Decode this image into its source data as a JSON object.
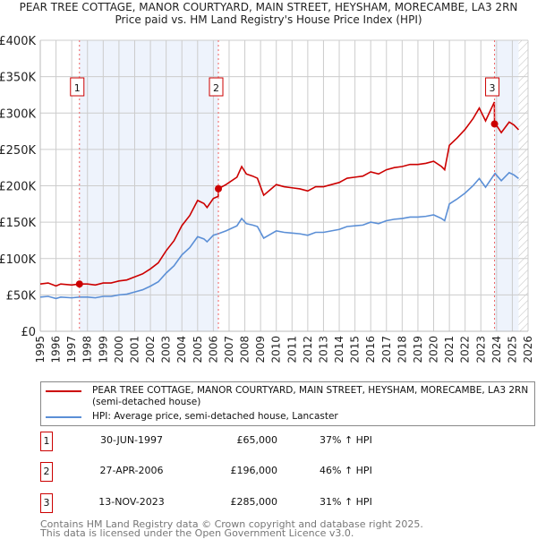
{
  "chart_data": {
    "type": "line",
    "title": "PEAR TREE COTTAGE, MANOR COURTYARD, MAIN STREET, HEYSHAM, MORECAMBE, LA3 2RN",
    "subtitle": "Price paid vs. HM Land Registry's House Price Index (HPI)",
    "xlim": [
      1995,
      2026
    ],
    "ylim": [
      0,
      400000
    ],
    "x_ticks": [
      "1995",
      "1996",
      "1997",
      "1998",
      "1999",
      "2000",
      "2001",
      "2002",
      "2003",
      "2004",
      "2005",
      "2006",
      "2007",
      "2008",
      "2009",
      "2010",
      "2011",
      "2012",
      "2013",
      "2014",
      "2015",
      "2016",
      "2017",
      "2018",
      "2019",
      "2020",
      "2021",
      "2022",
      "2023",
      "2024",
      "2025",
      "2026"
    ],
    "y_ticks": [
      {
        "v": 0,
        "label": "£0"
      },
      {
        "v": 50000,
        "label": "£50K"
      },
      {
        "v": 100000,
        "label": "£100K"
      },
      {
        "v": 150000,
        "label": "£150K"
      },
      {
        "v": 200000,
        "label": "£200K"
      },
      {
        "v": 250000,
        "label": "£250K"
      },
      {
        "v": 300000,
        "label": "£300K"
      },
      {
        "v": 350000,
        "label": "£350K"
      },
      {
        "v": 400000,
        "label": "£400K"
      }
    ],
    "hpi_series": {
      "name": "HPI: Average price, semi-detached house, Lancaster",
      "color": "#5b8fd6",
      "x": [
        1995,
        1995.5,
        1996,
        1996.3,
        1997,
        1997.5,
        1998,
        1998.5,
        1999,
        1999.5,
        2000,
        2000.5,
        2001,
        2001.5,
        2002,
        2002.5,
        2003,
        2003.5,
        2004,
        2004.5,
        2005,
        2005.4,
        2005.6,
        2006,
        2006.3,
        2006.8,
        2007,
        2007.5,
        2007.8,
        2008.1,
        2008.5,
        2008.8,
        2009.2,
        2009.6,
        2010,
        2010.5,
        2011,
        2011.5,
        2012,
        2012.5,
        2013,
        2013.5,
        2014,
        2014.5,
        2015,
        2015.5,
        2016,
        2016.5,
        2017,
        2017.5,
        2018,
        2018.5,
        2019,
        2019.5,
        2020,
        2020.5,
        2020.7,
        2021,
        2021.5,
        2022,
        2022.5,
        2022.9,
        2023.3,
        2023.9,
        2024.3,
        2024.8,
        2025.1,
        2025.4
      ],
      "y": [
        47000,
        48000,
        45000,
        47000,
        46000,
        47000,
        47000,
        46000,
        48000,
        48000,
        50000,
        51000,
        54000,
        57000,
        62000,
        68000,
        80000,
        90000,
        105000,
        115000,
        130000,
        127000,
        123000,
        132000,
        134000,
        138000,
        140000,
        145000,
        155000,
        148000,
        146000,
        144000,
        128000,
        133000,
        138000,
        136000,
        135000,
        134000,
        132000,
        136000,
        136000,
        138000,
        140000,
        144000,
        145000,
        146000,
        150000,
        148000,
        152000,
        154000,
        155000,
        157000,
        157000,
        158000,
        160000,
        155000,
        152000,
        175000,
        182000,
        190000,
        200000,
        210000,
        198000,
        217000,
        207000,
        218000,
        215000,
        210000
      ]
    },
    "price_series": {
      "name": "PEAR TREE COTTAGE, MANOR COURTYARD, MAIN STREET, HEYSHAM, MORECAMBE, LA3 2RN (semi-detached house)",
      "color": "#cc0000"
    },
    "sales": [
      {
        "n": "1",
        "x": 1997.49,
        "date": "30-JUN-1997",
        "price": 65000,
        "price_label": "£65,000",
        "pct": 37,
        "hpi_label": "37% ↑ HPI"
      },
      {
        "n": "2",
        "x": 2006.32,
        "date": "27-APR-2006",
        "price": 196000,
        "price_label": "£196,000",
        "pct": 46,
        "hpi_label": "46% ↑ HPI"
      },
      {
        "n": "3",
        "x": 2023.87,
        "date": "13-NOV-2023",
        "price": 285000,
        "price_label": "£285,000",
        "pct": 31,
        "hpi_label": "31% ↑ HPI"
      }
    ],
    "shaded_ranges": [
      [
        1997.49,
        2006.32
      ],
      [
        2023.87,
        2025.4
      ]
    ],
    "hatched_from": 2025.4,
    "legend_placement": "below"
  },
  "legend": {
    "price": "PEAR TREE COTTAGE, MANOR COURTYARD, MAIN STREET, HEYSHAM, MORECAMBE, LA3 2RN (semi-detached house)",
    "hpi": "HPI: Average price, semi-detached house, Lancaster"
  },
  "footer": {
    "line1": "Contains HM Land Registry data © Crown copyright and database right 2025.",
    "line2": "This data is licensed under the Open Government Licence v3.0."
  }
}
